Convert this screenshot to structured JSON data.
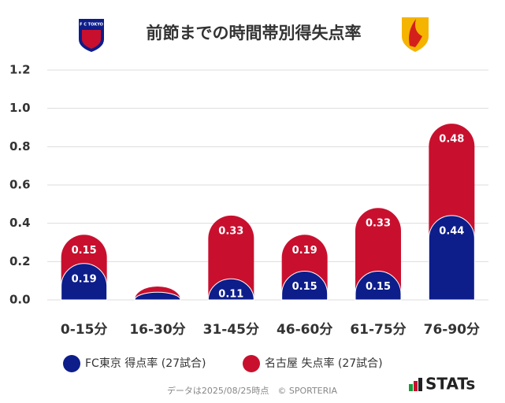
{
  "chart_data": {
    "type": "stacked_bar",
    "title": "前節までの時間帯別得失点率",
    "categories": [
      "0-15分",
      "16-30分",
      "31-45分",
      "46-60分",
      "61-75分",
      "76-90分"
    ],
    "series": [
      {
        "name": "FC東京 得点率 (27試合)",
        "color": "#0d1d8a",
        "values": [
          0.19,
          0.04,
          0.11,
          0.15,
          0.15,
          0.44
        ]
      },
      {
        "name": "名古屋 失点率 (27試合)",
        "color": "#c8102e",
        "values": [
          0.15,
          0.03,
          0.33,
          0.19,
          0.33,
          0.48
        ]
      }
    ],
    "ylim": [
      0,
      1.2
    ],
    "yticks": [
      {
        "value": 0,
        "label": "0.0"
      },
      0.2,
      0.4,
      0.6,
      0.8,
      {
        "value": 1,
        "label": "1.0"
      },
      1.2
    ],
    "grid": true,
    "footnote": "データは2025/08/25時点　© SPORTERIA",
    "logo_text": "STATs",
    "team_logo_text": "F C TOKYO"
  }
}
